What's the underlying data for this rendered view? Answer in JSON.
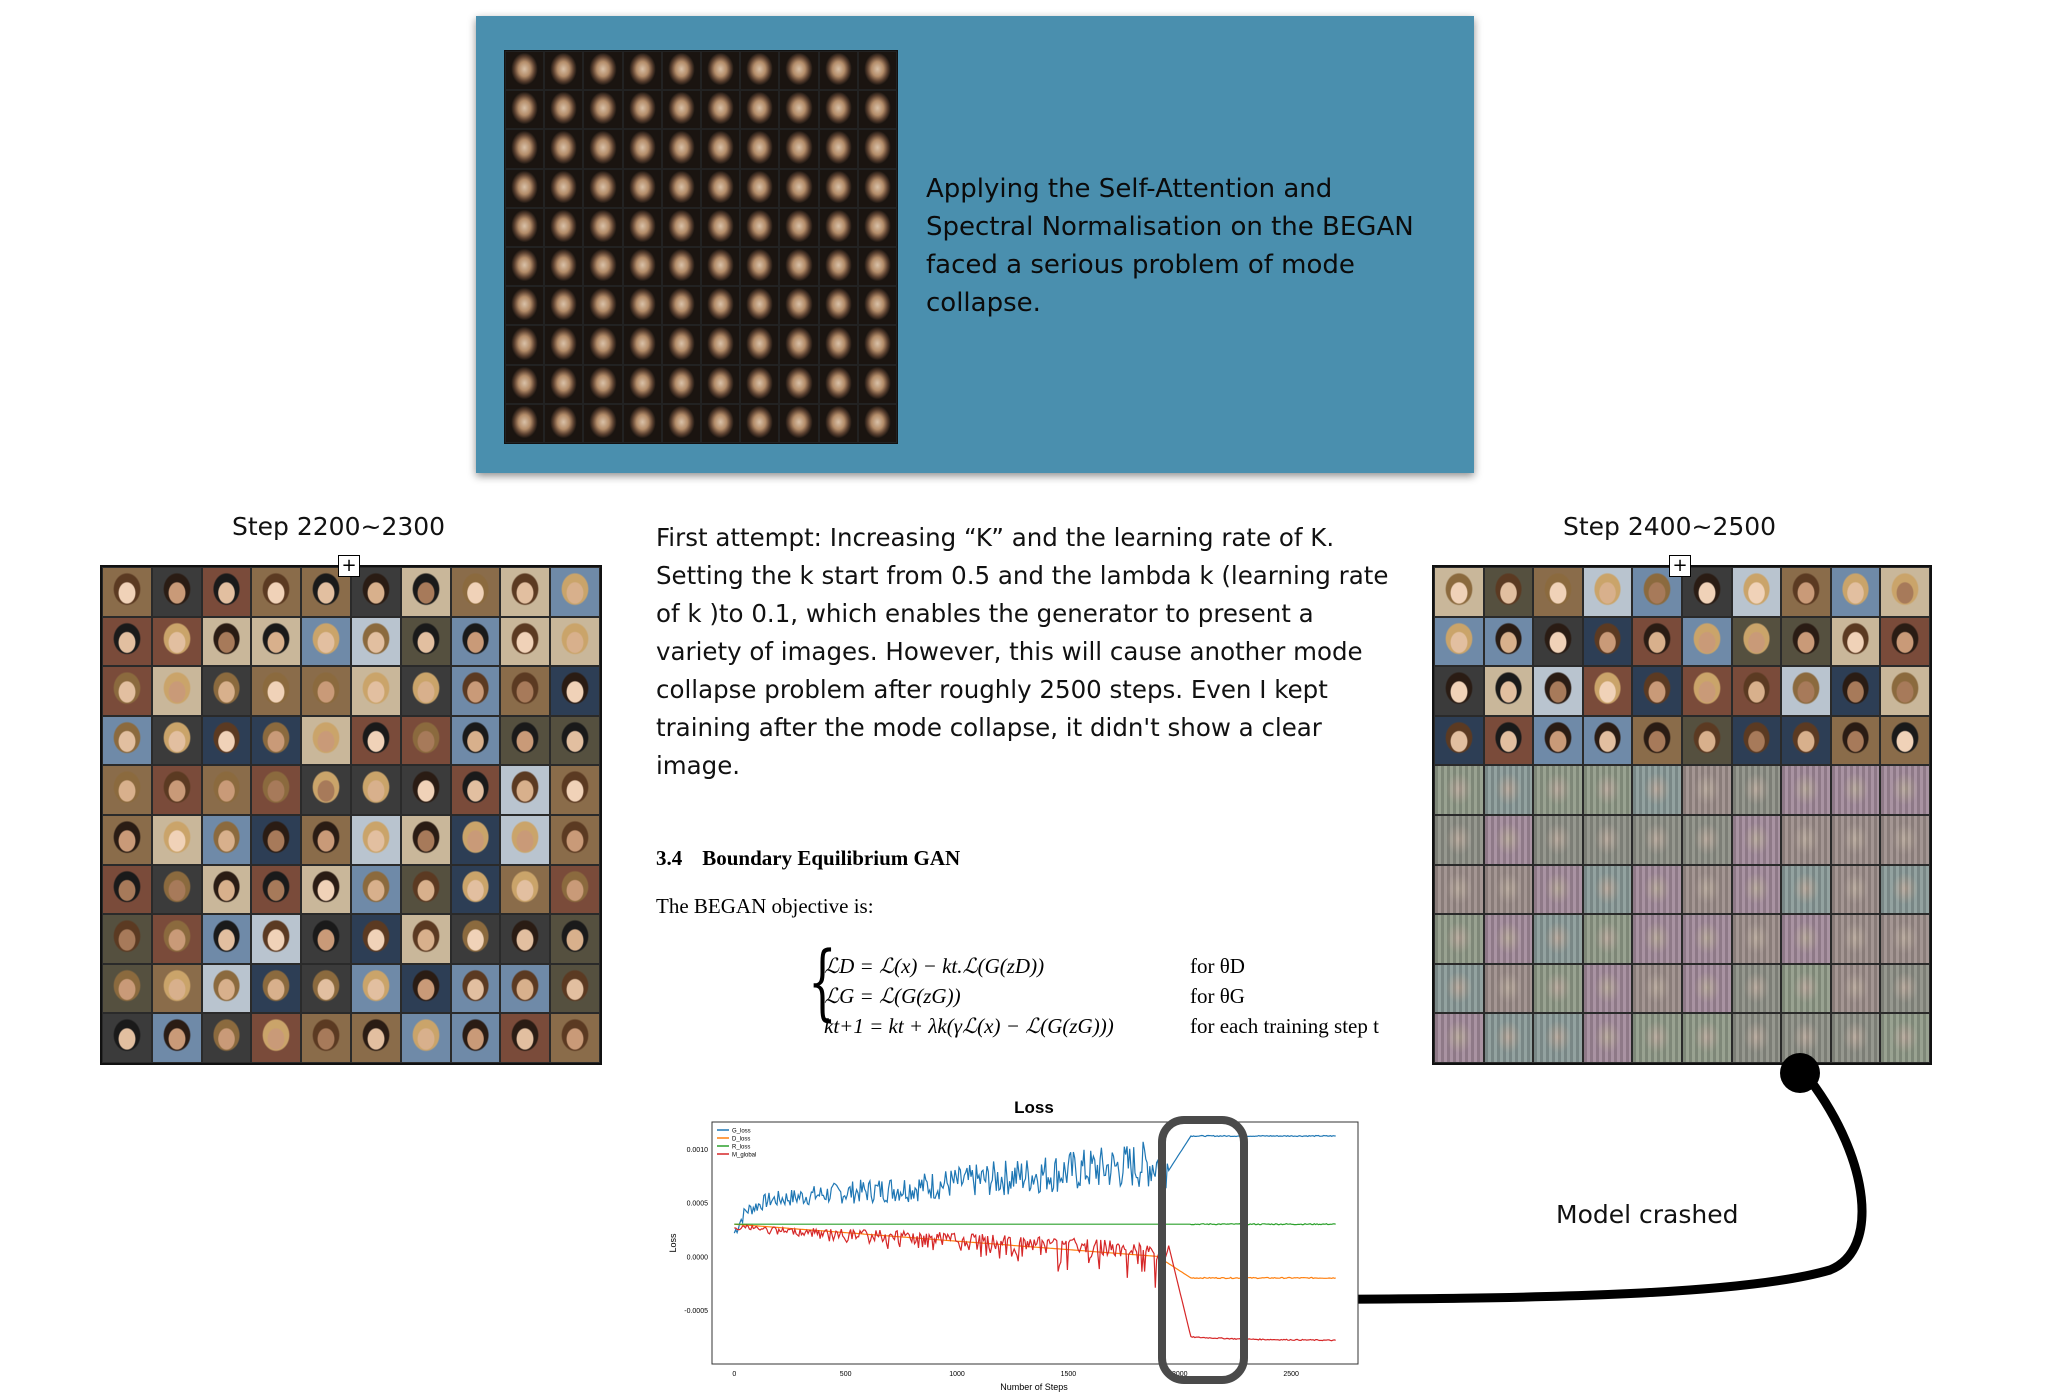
{
  "banner": {
    "text": "Applying the Self-Attention and Spectral Normalisation on the BEGAN faced a serious problem of mode collapse."
  },
  "left_panel": {
    "label": "Step 2200~2300",
    "expand_glyph": "+"
  },
  "right_panel": {
    "label": "Step 2400~2500",
    "expand_glyph": "+"
  },
  "attempt_text": "First attempt: Increasing “K” and the learning rate of K. Setting the k start from 0.5 and the lambda k (learning rate of k )to 0.1, which enables the generator to present a variety of images. However, this will cause another mode collapse problem after roughly 2500 steps. Even I kept training after the mode collapse, it didn't show a clear image.",
  "paper": {
    "section_number": "3.4",
    "section_title": "Boundary Equilibrium GAN",
    "body": "The BEGAN objective is:",
    "equations": [
      {
        "lhs": "ℒD = ℒ(x) − kt.ℒ(G(zD))",
        "cond": "for θD"
      },
      {
        "lhs": "ℒG = ℒ(G(zG))",
        "cond": "for θG"
      },
      {
        "lhs": "kt+1 = kt + λk(γℒ(x) − ℒ(G(zG)))",
        "cond": "for each training step t"
      }
    ]
  },
  "annotation": {
    "label": "Model crashed"
  },
  "colors": {
    "banner_bg": "#4a8fae",
    "g_loss": "#1f77b4",
    "d_loss": "#ff7f0e",
    "r_loss": "#2ca02c",
    "m_global": "#d62728"
  },
  "chart_data": {
    "type": "line",
    "title": "Loss",
    "xlabel": "Number of Steps",
    "ylabel": "Loss",
    "xlim": [
      -100,
      2800
    ],
    "ylim": [
      -0.001,
      0.00125
    ],
    "x_ticks": [
      "0",
      "500",
      "1000",
      "1500",
      "2000",
      "2500"
    ],
    "y_ticks": [
      "0.0010",
      "0.0005",
      "0.0000",
      "-0.0005"
    ],
    "y_tick_values": [
      0.001,
      0.0005,
      0.0,
      -0.0005
    ],
    "x_tick_values": [
      0,
      500,
      1000,
      1500,
      2000,
      2500
    ],
    "legend_position": "top-left",
    "series": [
      {
        "name": "G_loss",
        "color": "#1f77b4",
        "points": [
          [
            0,
            0.0002
          ],
          [
            50,
            0.0004
          ],
          [
            150,
            0.0005
          ],
          [
            400,
            0.00055
          ],
          [
            800,
            0.0006
          ],
          [
            1200,
            0.00068
          ],
          [
            1600,
            0.00075
          ],
          [
            1950,
            0.0008
          ],
          [
            2050,
            0.00112
          ],
          [
            2300,
            0.00112
          ],
          [
            2700,
            0.00112
          ]
        ]
      },
      {
        "name": "D_loss",
        "color": "#ff7f0e",
        "points": [
          [
            0,
            0.0003
          ],
          [
            1900,
            0.0
          ],
          [
            2050,
            -0.0002
          ],
          [
            2300,
            -0.0002
          ],
          [
            2700,
            -0.0002
          ]
        ]
      },
      {
        "name": "R_loss",
        "color": "#2ca02c",
        "points": [
          [
            0,
            0.0003
          ],
          [
            2700,
            0.0003
          ]
        ]
      },
      {
        "name": "M_global",
        "color": "#d62728",
        "points": [
          [
            0,
            0.0003
          ],
          [
            50,
            0.0003
          ],
          [
            200,
            0.00027
          ],
          [
            600,
            0.00025
          ],
          [
            1000,
            0.00022
          ],
          [
            1400,
            0.00018
          ],
          [
            1800,
            0.00014
          ],
          [
            1950,
            0.0001
          ],
          [
            2050,
            -0.00075
          ],
          [
            2300,
            -0.00077
          ],
          [
            2700,
            -0.00078
          ]
        ]
      }
    ]
  }
}
